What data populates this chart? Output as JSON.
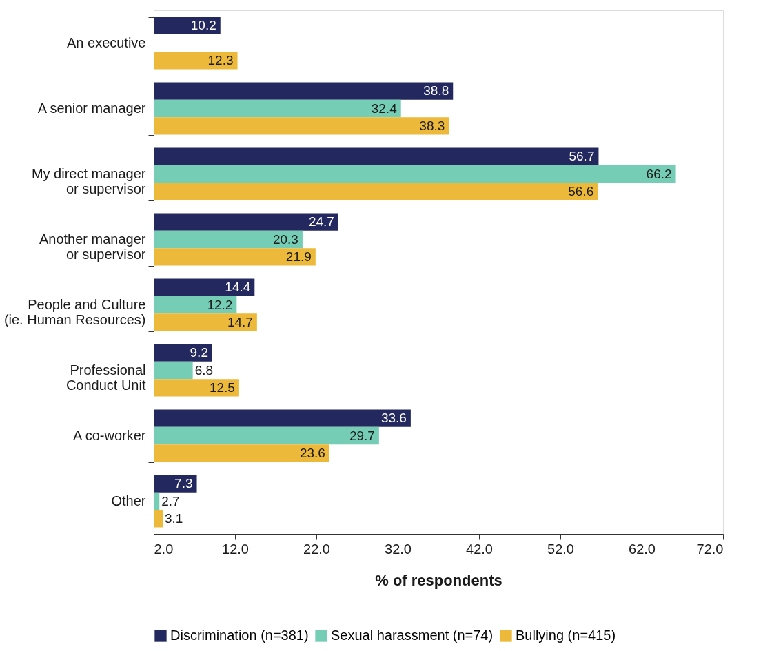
{
  "chart_data": {
    "type": "bar",
    "orientation": "horizontal",
    "xlabel": "% of respondents",
    "categories": [
      "An executive",
      "A senior manager",
      "My direct manager or supervisor",
      "Another manager or supervisor",
      "People and Culture (ie. Human Resources)",
      "Professional Conduct Unit",
      "A co-worker",
      "Other"
    ],
    "series": [
      {
        "name": "Discrimination (n=381)",
        "color": "#23295e",
        "values": [
          10.2,
          38.8,
          56.7,
          24.7,
          14.4,
          9.2,
          33.6,
          7.3
        ]
      },
      {
        "name": "Sexual harassment (n=74)",
        "color": "#76cdb5",
        "values": [
          null,
          32.4,
          66.2,
          20.3,
          12.2,
          6.8,
          29.7,
          2.7
        ]
      },
      {
        "name": "Bullying (n=415)",
        "color": "#ecb93a",
        "values": [
          12.3,
          38.3,
          56.6,
          21.9,
          14.7,
          12.5,
          23.6,
          3.1
        ]
      }
    ],
    "xlim": [
      2.0,
      72.0
    ],
    "xticks": [
      {
        "value": 2,
        "label": "2.0"
      },
      {
        "value": 12,
        "label": "12.0"
      },
      {
        "value": 22,
        "label": "22.0"
      },
      {
        "value": 32,
        "label": "32.0"
      },
      {
        "value": 42,
        "label": "42.0"
      },
      {
        "value": 52,
        "label": "52.0"
      },
      {
        "value": 62,
        "label": "62.0"
      },
      {
        "value": 72,
        "label": "72.0"
      }
    ],
    "data_labels": true,
    "grid": false,
    "legend": "bottom"
  }
}
